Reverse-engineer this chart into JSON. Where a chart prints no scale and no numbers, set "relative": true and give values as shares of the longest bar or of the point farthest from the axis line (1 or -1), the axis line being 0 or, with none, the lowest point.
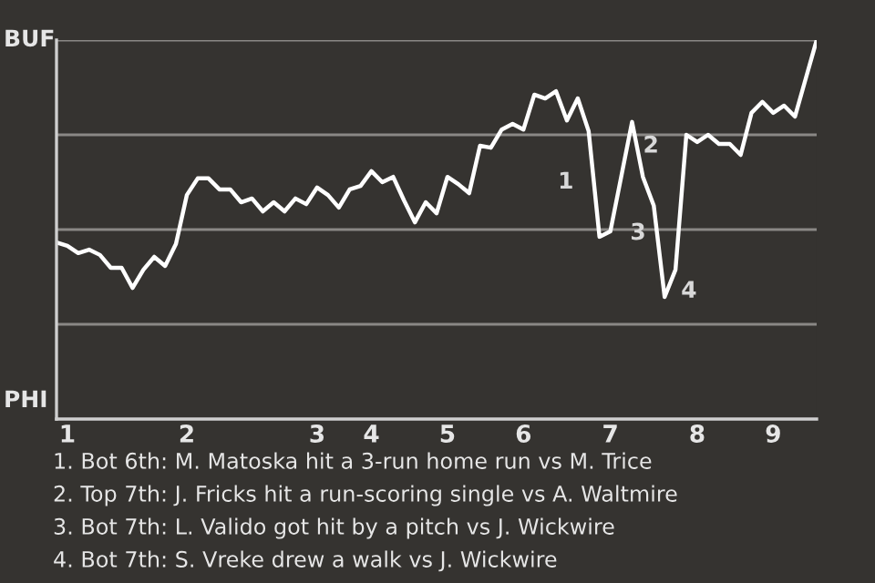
{
  "chart_data": {
    "type": "line",
    "categories": [
      null,
      "1",
      null,
      null,
      null,
      null,
      null,
      null,
      null,
      null,
      null,
      null,
      "2",
      null,
      null,
      null,
      null,
      null,
      null,
      null,
      null,
      null,
      null,
      null,
      "3",
      null,
      null,
      null,
      null,
      "4",
      null,
      null,
      null,
      null,
      null,
      null,
      "5",
      null,
      null,
      null,
      null,
      null,
      null,
      "6",
      null,
      null,
      null,
      null,
      null,
      null,
      null,
      "7",
      null,
      null,
      null,
      null,
      null,
      null,
      null,
      "8",
      null,
      null,
      null,
      null,
      null,
      null,
      "9",
      null,
      null,
      null,
      null
    ],
    "relative": true,
    "series": [
      {
        "color": "#ffffff",
        "values": [
          0.466,
          0.457,
          0.438,
          0.447,
          0.433,
          0.399,
          0.399,
          0.346,
          0.394,
          0.428,
          0.404,
          0.462,
          0.591,
          0.635,
          0.635,
          0.606,
          0.606,
          0.572,
          0.582,
          0.548,
          0.572,
          0.548,
          0.582,
          0.567,
          0.611,
          0.591,
          0.558,
          0.606,
          0.615,
          0.654,
          0.625,
          0.639,
          0.577,
          0.519,
          0.572,
          0.543,
          0.639,
          0.62,
          0.596,
          0.721,
          0.716,
          0.764,
          0.779,
          0.764,
          0.856,
          0.846,
          0.865,
          0.788,
          0.846,
          0.76,
          0.481,
          0.495,
          0.639,
          0.784,
          0.639,
          0.563,
          0.322,
          0.394,
          0.75,
          0.731,
          0.75,
          0.726,
          0.726,
          0.697,
          0.808,
          0.837,
          0.808,
          0.827,
          0.798,
          0.899,
          1
        ]
      }
    ],
    "grid": "y",
    "marker": "none",
    "line_style": "solid",
    "annotations": [
      "1",
      "2",
      "3",
      "4",
      "BUF",
      "PHI",
      "1. Bot 6th: M. Matoska hit a 3-run home run vs M. Trice",
      "2. Top 7th: J. Fricks hit a run-scoring single vs A. Waltmire",
      "3. Bot 7th: L. Valido got hit by a pitch vs J. Wickwire",
      "4. Bot 7th: S. Vreke drew a walk vs J. Wickwire"
    ]
  }
}
